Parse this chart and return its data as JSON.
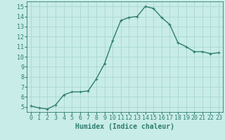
{
  "x": [
    0,
    1,
    2,
    3,
    4,
    5,
    6,
    7,
    8,
    9,
    10,
    11,
    12,
    13,
    14,
    15,
    16,
    17,
    18,
    19,
    20,
    21,
    22,
    23
  ],
  "y": [
    5.1,
    4.9,
    4.8,
    5.2,
    6.2,
    6.5,
    6.5,
    6.6,
    7.8,
    9.3,
    11.6,
    13.6,
    13.9,
    14.0,
    15.0,
    14.8,
    13.9,
    13.2,
    11.4,
    11.0,
    10.5,
    10.5,
    10.3,
    10.4
  ],
  "line_color": "#2e7d6e",
  "marker": "+",
  "marker_size": 3,
  "bg_color": "#c8ece8",
  "grid_color": "#a8d8d0",
  "grid_minor_color": "#d0e8e4",
  "xlabel": "Humidex (Indice chaleur)",
  "xlabel_fontsize": 7,
  "ytick_min": 5,
  "ytick_max": 15,
  "xtick_labels": [
    "0",
    "1",
    "2",
    "3",
    "4",
    "5",
    "6",
    "7",
    "8",
    "9",
    "10",
    "11",
    "12",
    "13",
    "14",
    "15",
    "16",
    "17",
    "18",
    "19",
    "20",
    "21",
    "22",
    "23"
  ],
  "ylim": [
    4.5,
    15.5
  ],
  "xlim": [
    -0.5,
    23.5
  ],
  "tick_fontsize": 6,
  "line_width": 1.0,
  "markeredgewidth": 0.8
}
